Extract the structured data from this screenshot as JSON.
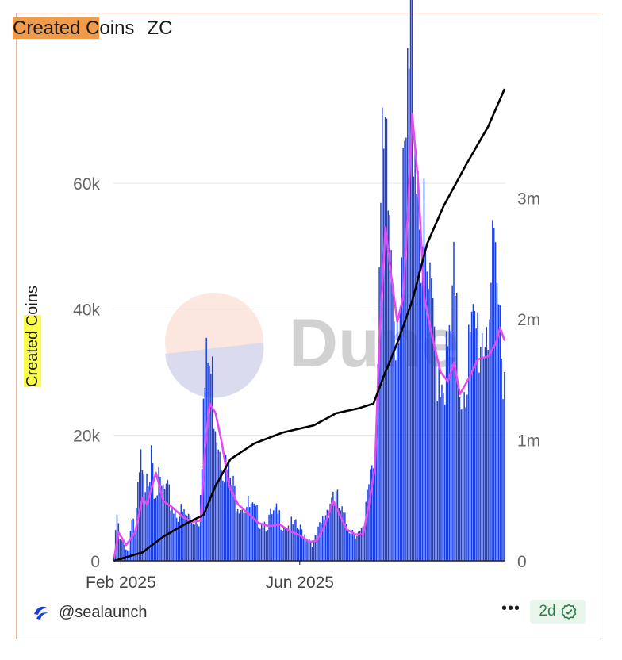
{
  "header": {
    "title_highlight": "Created C",
    "title_rest": "oins",
    "subtitle": "ZC"
  },
  "footer": {
    "handle": "@sealaunch",
    "logo_icon": "wave-logo-icon",
    "menu_icon": "more-dots-icon",
    "menu_label": "•••",
    "freshness": "2d",
    "freshness_icon": "check-badge-icon"
  },
  "watermark": {
    "text": "Dune"
  },
  "colors": {
    "bars": "#1c3fe0",
    "moving_average": "#e14bf0",
    "cumulative": "#000000",
    "title_highlight": "#ef9b4b",
    "ylabel_highlight": "#fbff4a"
  },
  "chart_data": {
    "type": "bar",
    "title": "Created Coins ZC",
    "ylabel": "Created Coins",
    "ylabel_highlight": "Created C",
    "ylabel_rest": "oins",
    "x_start": "2025-01-27",
    "x_ticks": [
      {
        "label": "Feb 2025",
        "date": "2025-02-01"
      },
      {
        "label": "Jun 2025",
        "date": "2025-06-01"
      }
    ],
    "y_left": {
      "ylim": [
        0,
        75000
      ],
      "ticks": [
        0,
        20000,
        40000,
        60000
      ],
      "tick_labels": [
        "0",
        "20k",
        "40k",
        "60k"
      ]
    },
    "y_right": {
      "ylim": [
        0,
        3900000
      ],
      "ticks": [
        0,
        1000000,
        2000000,
        3000000
      ],
      "tick_labels": [
        "0",
        "1m",
        "2m",
        "3m"
      ]
    },
    "grid": true,
    "legend": "none",
    "series": [
      {
        "type": "bar",
        "axis": "left",
        "keypoints": [
          [
            "2025-01-27",
            500
          ],
          [
            "2025-01-29",
            6500
          ],
          [
            "2025-01-31",
            2800
          ],
          [
            "2025-02-03",
            2200
          ],
          [
            "2025-02-06",
            1500
          ],
          [
            "2025-02-08",
            7500
          ],
          [
            "2025-02-10",
            4500
          ],
          [
            "2025-02-14",
            13500
          ],
          [
            "2025-02-17",
            8500
          ],
          [
            "2025-02-20",
            14500
          ],
          [
            "2025-02-21",
            20000
          ],
          [
            "2025-02-23",
            12000
          ],
          [
            "2025-02-27",
            10000
          ],
          [
            "2025-03-03",
            9500
          ],
          [
            "2025-03-08",
            7500
          ],
          [
            "2025-03-14",
            6500
          ],
          [
            "2025-03-20",
            6000
          ],
          [
            "2025-03-25",
            6200
          ],
          [
            "2025-03-28",
            22000
          ],
          [
            "2025-03-31",
            28000
          ],
          [
            "2025-04-03",
            25000
          ],
          [
            "2025-04-07",
            19000
          ],
          [
            "2025-04-12",
            13000
          ],
          [
            "2025-04-18",
            9500
          ],
          [
            "2025-04-25",
            8000
          ],
          [
            "2025-05-02",
            6500
          ],
          [
            "2025-05-09",
            5500
          ],
          [
            "2025-05-16",
            6500
          ],
          [
            "2025-05-23",
            5200
          ],
          [
            "2025-05-30",
            4600
          ],
          [
            "2025-06-06",
            3500
          ],
          [
            "2025-06-10",
            2500
          ],
          [
            "2025-06-14",
            4500
          ],
          [
            "2025-06-19",
            7500
          ],
          [
            "2025-06-23",
            10000
          ],
          [
            "2025-06-27",
            7500
          ],
          [
            "2025-07-01",
            5500
          ],
          [
            "2025-07-06",
            4500
          ],
          [
            "2025-07-11",
            3800
          ],
          [
            "2025-07-14",
            4200
          ],
          [
            "2025-07-16",
            10000
          ],
          [
            "2025-07-18",
            13500
          ],
          [
            "2025-07-21",
            16000
          ],
          [
            "2025-07-24",
            42000
          ],
          [
            "2025-07-26",
            51000
          ],
          [
            "2025-07-28",
            53000
          ],
          [
            "2025-07-31",
            48000
          ],
          [
            "2025-08-04",
            37000
          ],
          [
            "2025-08-08",
            42000
          ],
          [
            "2025-08-12",
            60000
          ],
          [
            "2025-08-14",
            74000
          ],
          [
            "2025-08-17",
            68000
          ],
          [
            "2025-08-20",
            52000
          ],
          [
            "2025-08-24",
            40000
          ],
          [
            "2025-08-28",
            33000
          ],
          [
            "2025-09-03",
            28000
          ],
          [
            "2025-09-08",
            27000
          ],
          [
            "2025-09-12",
            37000
          ],
          [
            "2025-09-16",
            25000
          ],
          [
            "2025-09-21",
            28000
          ],
          [
            "2025-09-27",
            32000
          ],
          [
            "2025-10-02",
            33000
          ],
          [
            "2025-10-07",
            39000
          ],
          [
            "2025-10-11",
            36000
          ],
          [
            "2025-10-14",
            32000
          ],
          [
            "2025-10-16",
            30000
          ]
        ]
      },
      {
        "type": "line",
        "name": "",
        "axis": "left",
        "keypoints": [
          [
            "2025-01-27",
            500
          ],
          [
            "2025-01-30",
            4500
          ],
          [
            "2025-02-04",
            2500
          ],
          [
            "2025-02-10",
            4500
          ],
          [
            "2025-02-15",
            10000
          ],
          [
            "2025-02-18",
            9000
          ],
          [
            "2025-02-24",
            14000
          ],
          [
            "2025-03-01",
            9500
          ],
          [
            "2025-03-07",
            8500
          ],
          [
            "2025-03-14",
            7000
          ],
          [
            "2025-03-20",
            6200
          ],
          [
            "2025-03-26",
            6400
          ],
          [
            "2025-03-29",
            18000
          ],
          [
            "2025-04-01",
            25000
          ],
          [
            "2025-04-05",
            23500
          ],
          [
            "2025-04-09",
            19000
          ],
          [
            "2025-04-14",
            12000
          ],
          [
            "2025-04-20",
            9000
          ],
          [
            "2025-04-27",
            7500
          ],
          [
            "2025-05-04",
            6000
          ],
          [
            "2025-05-11",
            5500
          ],
          [
            "2025-05-18",
            5800
          ],
          [
            "2025-05-25",
            4700
          ],
          [
            "2025-06-01",
            4000
          ],
          [
            "2025-06-07",
            3000
          ],
          [
            "2025-06-12",
            3200
          ],
          [
            "2025-06-17",
            5500
          ],
          [
            "2025-06-23",
            9500
          ],
          [
            "2025-06-27",
            7500
          ],
          [
            "2025-07-02",
            5000
          ],
          [
            "2025-07-08",
            4200
          ],
          [
            "2025-07-13",
            4200
          ],
          [
            "2025-07-17",
            9000
          ],
          [
            "2025-07-21",
            15000
          ],
          [
            "2025-07-24",
            35000
          ],
          [
            "2025-07-28",
            53000
          ],
          [
            "2025-08-01",
            45000
          ],
          [
            "2025-08-05",
            38000
          ],
          [
            "2025-08-09",
            42000
          ],
          [
            "2025-08-12",
            55000
          ],
          [
            "2025-08-15",
            71000
          ],
          [
            "2025-08-19",
            60000
          ],
          [
            "2025-08-23",
            42000
          ],
          [
            "2025-08-28",
            36000
          ],
          [
            "2025-09-03",
            30000
          ],
          [
            "2025-09-08",
            28500
          ],
          [
            "2025-09-12",
            31500
          ],
          [
            "2025-09-16",
            26500
          ],
          [
            "2025-09-22",
            29000
          ],
          [
            "2025-09-28",
            32000
          ],
          [
            "2025-10-05",
            32500
          ],
          [
            "2025-10-10",
            34500
          ],
          [
            "2025-10-13",
            37000
          ],
          [
            "2025-10-16",
            35000
          ]
        ]
      },
      {
        "type": "line",
        "name": "",
        "axis": "right",
        "keypoints": [
          [
            "2025-01-27",
            0
          ],
          [
            "2025-02-15",
            70000
          ],
          [
            "2025-03-01",
            200000
          ],
          [
            "2025-03-15",
            300000
          ],
          [
            "2025-03-28",
            380000
          ],
          [
            "2025-04-05",
            620000
          ],
          [
            "2025-04-15",
            840000
          ],
          [
            "2025-05-01",
            970000
          ],
          [
            "2025-05-20",
            1060000
          ],
          [
            "2025-06-10",
            1120000
          ],
          [
            "2025-06-25",
            1220000
          ],
          [
            "2025-07-10",
            1260000
          ],
          [
            "2025-07-20",
            1300000
          ],
          [
            "2025-07-28",
            1560000
          ],
          [
            "2025-08-05",
            1800000
          ],
          [
            "2025-08-15",
            2150000
          ],
          [
            "2025-08-25",
            2620000
          ],
          [
            "2025-09-05",
            2930000
          ],
          [
            "2025-09-20",
            3270000
          ],
          [
            "2025-10-05",
            3590000
          ],
          [
            "2025-10-16",
            3900000
          ]
        ]
      }
    ]
  }
}
